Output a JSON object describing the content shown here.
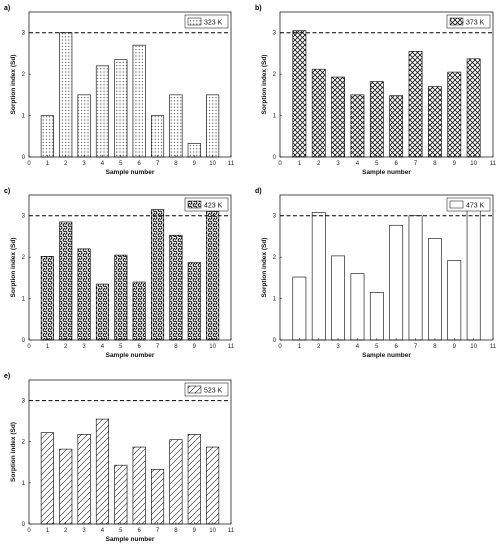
{
  "chart_data": [
    {
      "type": "bar",
      "panel_label": "a)",
      "legend": "323 K",
      "pattern": "dots",
      "x": [
        1,
        2,
        3,
        4,
        5,
        6,
        7,
        8,
        9,
        10
      ],
      "values": [
        1.0,
        3.0,
        1.5,
        2.2,
        2.35,
        2.7,
        1.0,
        1.5,
        0.33,
        1.5
      ],
      "reference_line": 3.0,
      "xlabel": "Sample number",
      "ylabel": "Sorption index (Sd)",
      "xlim": [
        0,
        11
      ],
      "ylim": [
        0,
        3.5
      ],
      "xticks": [
        "0",
        "1",
        "2",
        "3",
        "4",
        "5",
        "6",
        "7",
        "8",
        "9",
        "10",
        "11"
      ],
      "yticks": [
        "0",
        "1",
        "2",
        "3"
      ],
      "legend_position": "top-right",
      "grid": false
    },
    {
      "type": "bar",
      "panel_label": "b)",
      "legend": "373 K",
      "pattern": "crosshatch",
      "x": [
        1,
        2,
        3,
        4,
        5,
        6,
        7,
        8,
        9,
        10
      ],
      "values": [
        3.05,
        2.12,
        1.93,
        1.5,
        1.82,
        1.48,
        2.55,
        1.7,
        2.05,
        2.37
      ],
      "reference_line": 3.0,
      "xlabel": "Sample number",
      "ylabel": "Sorption index (Sd)",
      "xlim": [
        0,
        11
      ],
      "ylim": [
        0,
        3.5
      ],
      "xticks": [
        "0",
        "1",
        "2",
        "3",
        "4",
        "5",
        "6",
        "7",
        "8",
        "9",
        "10",
        "11"
      ],
      "yticks": [
        "0",
        "1",
        "2",
        "3"
      ],
      "legend_position": "top-right",
      "grid": false
    },
    {
      "type": "bar",
      "panel_label": "c)",
      "legend": "423 K",
      "pattern": "weave",
      "x": [
        1,
        2,
        3,
        4,
        5,
        6,
        7,
        8,
        9,
        10
      ],
      "values": [
        2.02,
        2.85,
        2.2,
        1.35,
        2.05,
        1.4,
        3.15,
        2.53,
        1.87,
        3.1
      ],
      "reference_line": 3.0,
      "xlabel": "Sample number",
      "ylabel": "Sorption index (Sd)",
      "xlim": [
        0,
        11
      ],
      "ylim": [
        0,
        3.5
      ],
      "xticks": [
        "0",
        "1",
        "2",
        "3",
        "4",
        "5",
        "6",
        "7",
        "8",
        "9",
        "10",
        "11"
      ],
      "yticks": [
        "0",
        "1",
        "2",
        "3"
      ],
      "legend_position": "top-right",
      "grid": false
    },
    {
      "type": "bar",
      "panel_label": "d)",
      "legend": "473 K",
      "pattern": "none",
      "x": [
        1,
        2,
        3,
        4,
        5,
        6,
        7,
        8,
        9,
        10
      ],
      "values": [
        1.52,
        3.08,
        2.03,
        1.6,
        1.15,
        2.77,
        3.0,
        2.45,
        1.92,
        3.18
      ],
      "reference_line": 3.0,
      "xlabel": "Sample number",
      "ylabel": "Sorption index (Sd)",
      "xlim": [
        0,
        11
      ],
      "ylim": [
        0,
        3.5
      ],
      "xticks": [
        "0",
        "1",
        "2",
        "3",
        "4",
        "5",
        "6",
        "7",
        "8",
        "9",
        "10",
        "11"
      ],
      "yticks": [
        "0",
        "1",
        "2",
        "3"
      ],
      "legend_position": "top-right",
      "grid": false
    },
    {
      "type": "bar",
      "panel_label": "e)",
      "legend": "523 K",
      "pattern": "diagonal",
      "x": [
        1,
        2,
        3,
        4,
        5,
        6,
        7,
        8,
        9,
        10
      ],
      "values": [
        2.22,
        1.82,
        2.18,
        2.55,
        1.43,
        1.87,
        1.33,
        2.05,
        2.18,
        1.87
      ],
      "reference_line": 3.0,
      "xlabel": "Sample number",
      "ylabel": "Sorption index (Sd)",
      "xlim": [
        0,
        11
      ],
      "ylim": [
        0,
        3.5
      ],
      "xticks": [
        "0",
        "1",
        "2",
        "3",
        "4",
        "5",
        "6",
        "7",
        "8",
        "9",
        "10",
        "11"
      ],
      "yticks": [
        "0",
        "1",
        "2",
        "3"
      ],
      "legend_position": "top-right",
      "grid": false
    }
  ]
}
